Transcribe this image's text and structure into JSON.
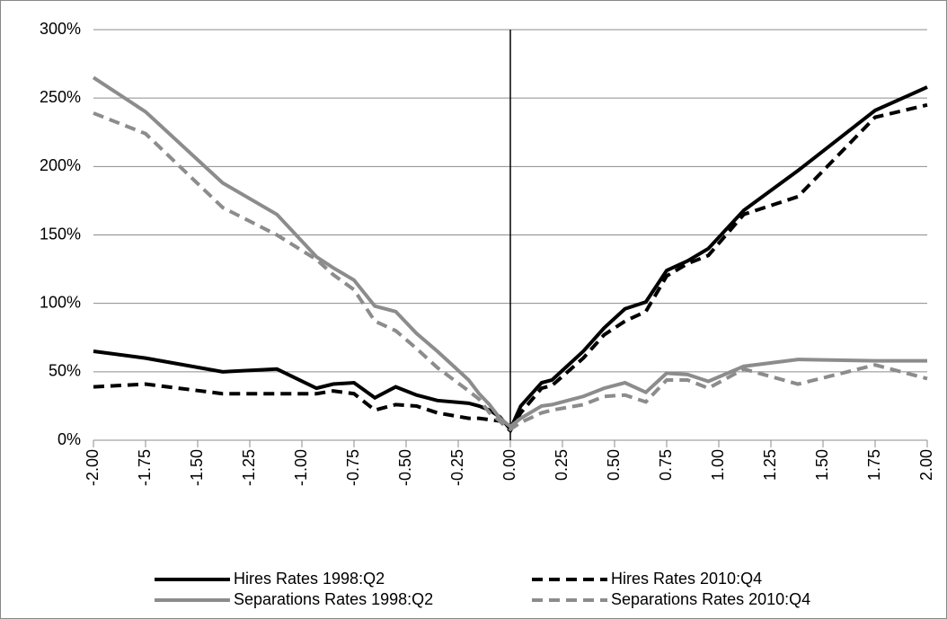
{
  "chart_data": {
    "type": "line",
    "x": [
      -2.0,
      -1.75,
      -1.38,
      -1.12,
      -0.93,
      -0.85,
      -0.75,
      -0.65,
      -0.55,
      -0.45,
      -0.35,
      -0.2,
      -0.15,
      -0.1,
      -0.05,
      0,
      0.05,
      0.15,
      0.2,
      0.35,
      0.45,
      0.55,
      0.65,
      0.75,
      0.85,
      0.95,
      1.12,
      1.38,
      1.75,
      2.0
    ],
    "series": [
      {
        "name": "Hires Rates 1998:Q2",
        "color": "#000000",
        "dashed": false,
        "values": [
          65,
          60,
          50,
          52,
          38,
          41,
          42,
          31,
          39,
          33,
          29,
          27,
          25,
          22,
          17,
          8,
          25,
          42,
          44,
          65,
          82,
          96,
          101,
          124,
          131,
          140,
          168,
          197,
          241,
          258
        ]
      },
      {
        "name": "Hires Rates 2010:Q4",
        "color": "#000000",
        "dashed": true,
        "values": [
          39,
          41,
          34,
          34,
          34,
          36,
          34,
          22,
          26,
          25,
          20,
          16,
          16,
          15,
          14,
          7,
          20,
          38,
          40,
          60,
          77,
          87,
          94,
          120,
          129,
          135,
          165,
          178,
          236,
          245
        ]
      },
      {
        "name": "Separations Rates 1998:Q2",
        "color": "#8c8c8c",
        "dashed": false,
        "values": [
          265,
          240,
          188,
          165,
          134,
          126,
          117,
          98,
          94,
          78,
          65,
          44,
          34,
          26,
          16,
          10,
          16,
          25,
          26,
          32,
          38,
          42,
          35,
          49,
          48,
          43,
          54,
          59,
          58,
          58
        ]
      },
      {
        "name": "Separations Rates 2010:Q4",
        "color": "#8c8c8c",
        "dashed": true,
        "values": [
          239,
          224,
          170,
          150,
          132,
          121,
          110,
          87,
          80,
          67,
          53,
          36,
          30,
          20,
          14,
          8,
          13,
          20,
          22,
          26,
          32,
          33,
          28,
          44,
          44,
          38,
          52,
          41,
          55,
          45
        ]
      }
    ],
    "xlim": [
      -2.0,
      2.0
    ],
    "xticks": [
      {
        "value": -2.0,
        "label": "-2.00"
      },
      {
        "value": -1.75,
        "label": "-1.75"
      },
      {
        "value": -1.5,
        "label": "-1.50"
      },
      {
        "value": -1.25,
        "label": "-1.25"
      },
      {
        "value": -1.0,
        "label": "-1.00"
      },
      {
        "value": -0.75,
        "label": "-0.75"
      },
      {
        "value": -0.5,
        "label": "-0.50"
      },
      {
        "value": -0.25,
        "label": "-0.25"
      },
      {
        "value": 0,
        "label": "0.00"
      },
      {
        "value": 0.25,
        "label": "0.25"
      },
      {
        "value": 0.5,
        "label": "0.50"
      },
      {
        "value": 0.75,
        "label": "0.75"
      },
      {
        "value": 1.0,
        "label": "1.00"
      },
      {
        "value": 1.25,
        "label": "1.25"
      },
      {
        "value": 1.5,
        "label": "1.50"
      },
      {
        "value": 1.75,
        "label": "1.75"
      },
      {
        "value": 2.0,
        "label": "2.00"
      }
    ],
    "ylim": [
      0,
      300
    ],
    "yticks": [
      {
        "value": 0,
        "label": "0%"
      },
      {
        "value": 50,
        "label": "50%"
      },
      {
        "value": 100,
        "label": "100%"
      },
      {
        "value": 150,
        "label": "150%"
      },
      {
        "value": 200,
        "label": "200%"
      },
      {
        "value": 250,
        "label": "250%"
      },
      {
        "value": 300,
        "label": "300%"
      }
    ],
    "grid": true,
    "legend": "bottom"
  }
}
